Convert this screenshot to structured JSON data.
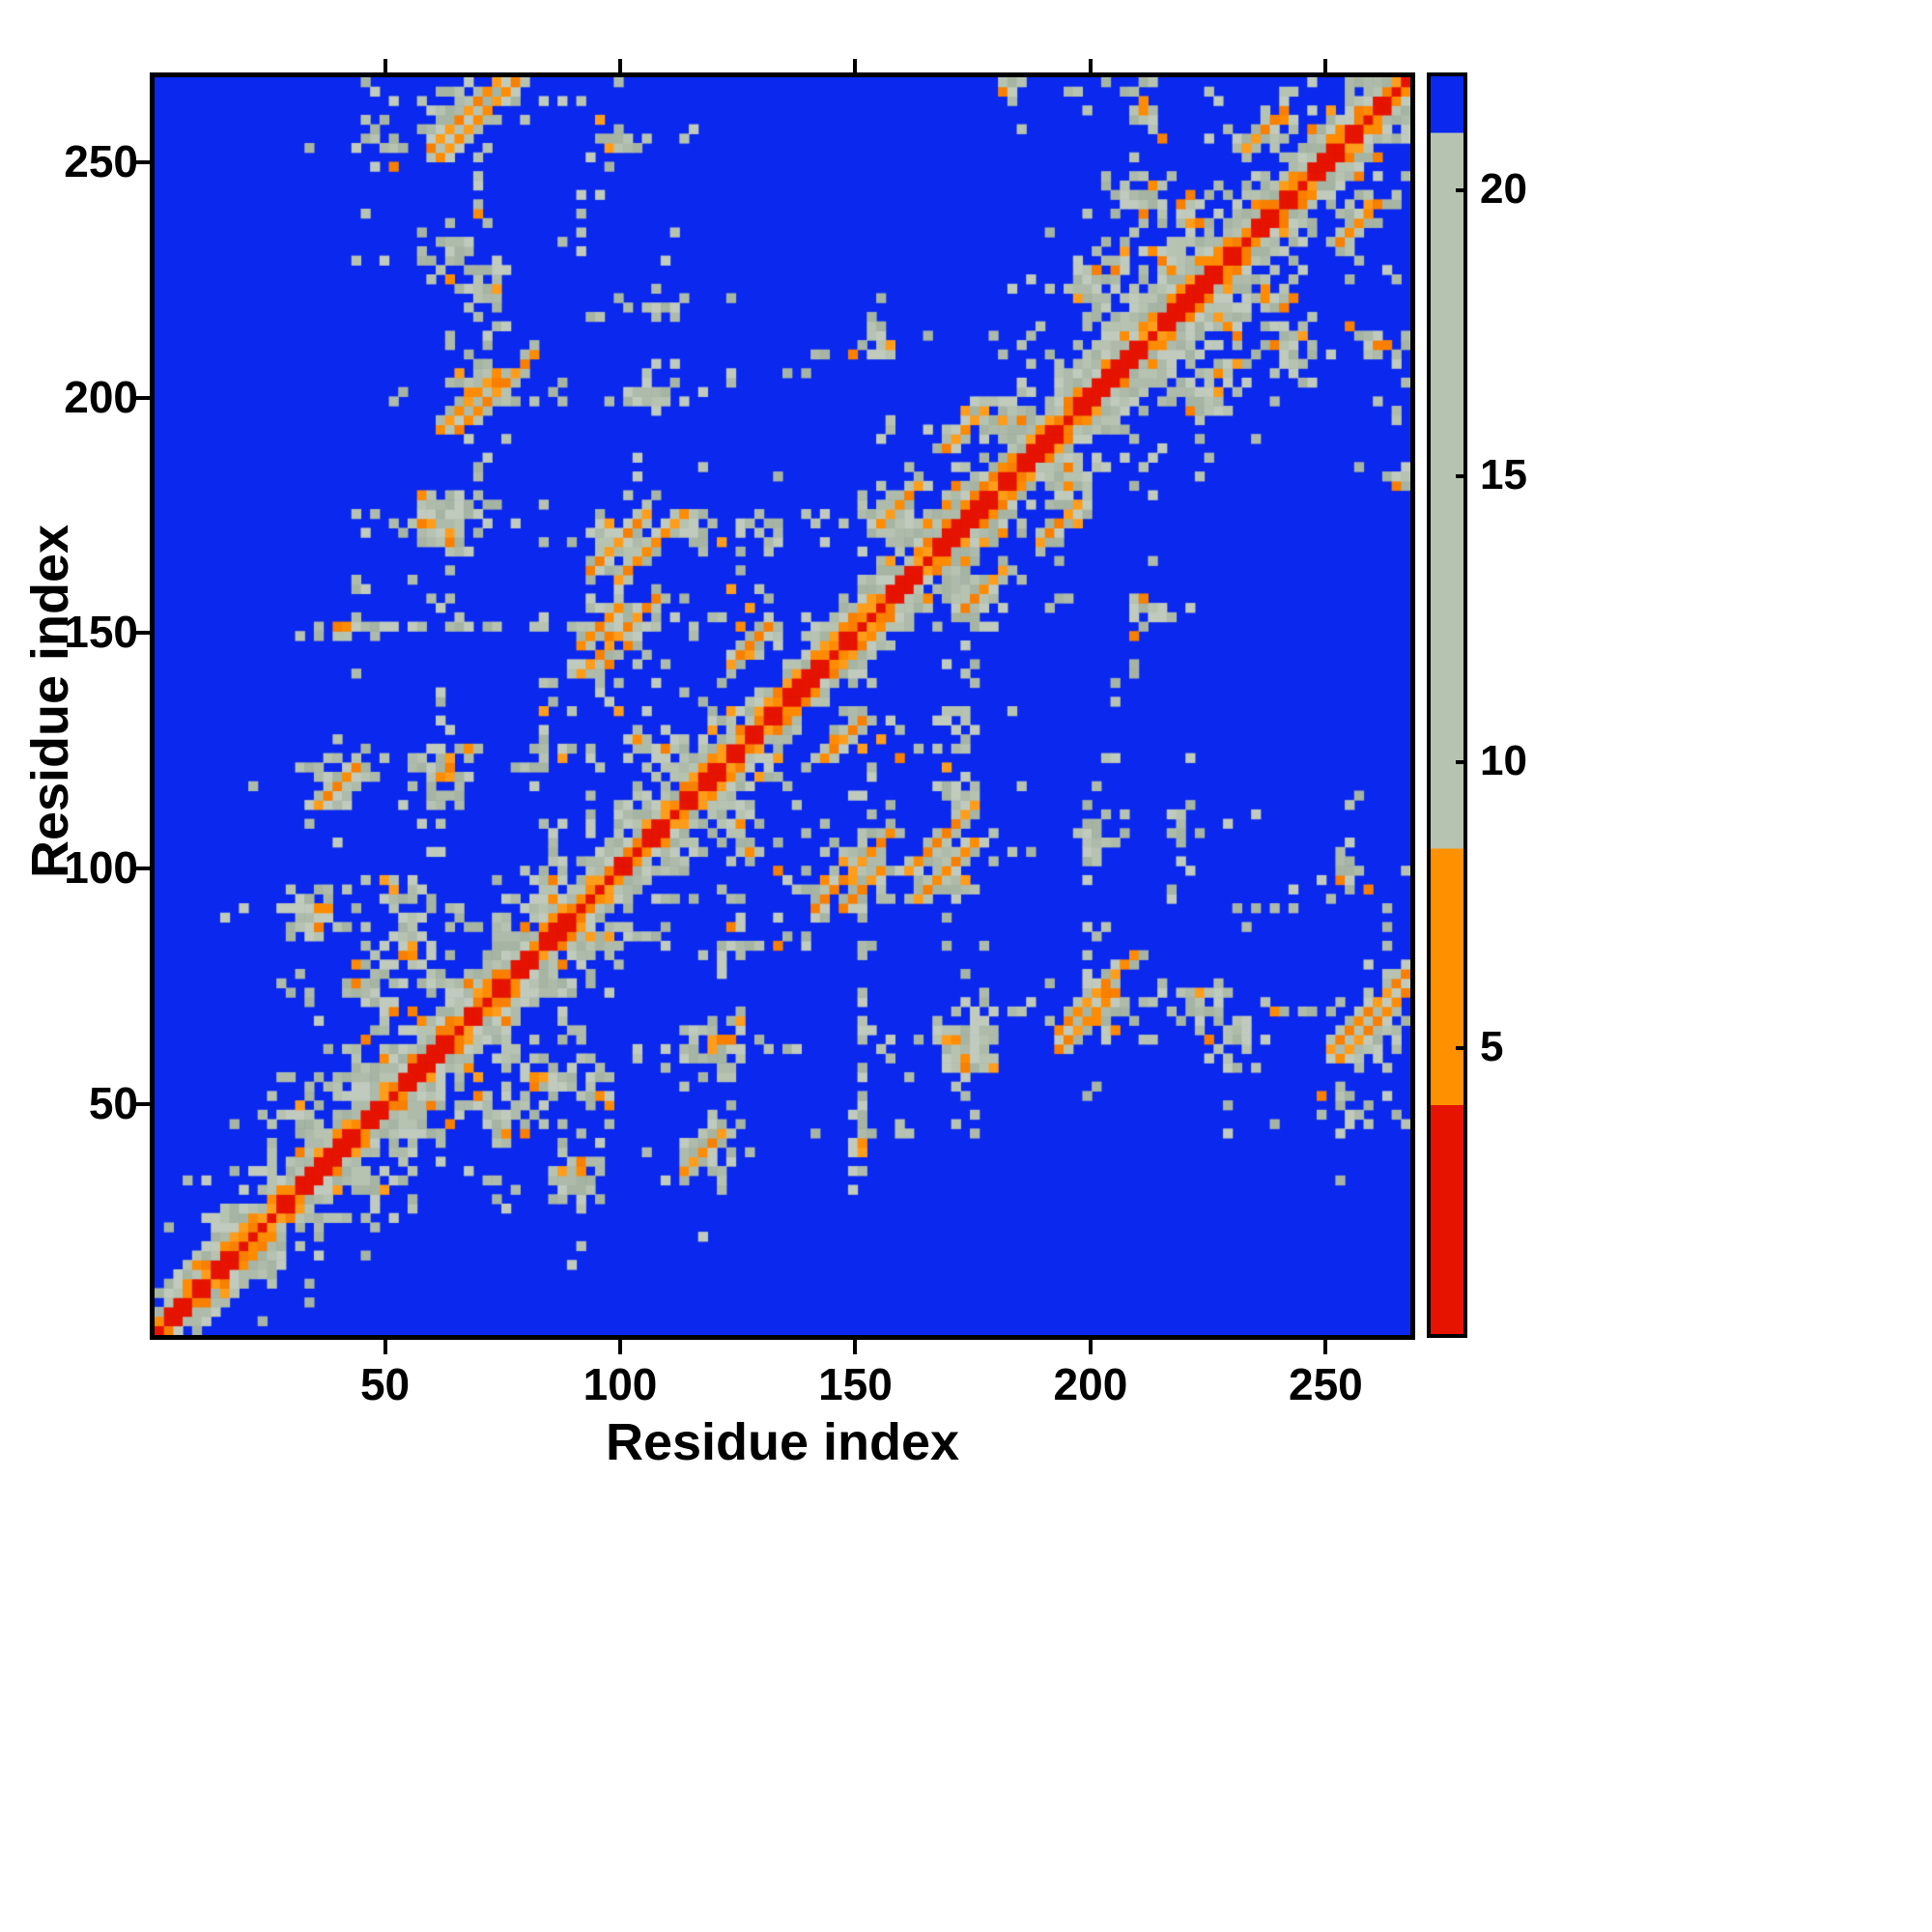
{
  "chart_data": {
    "type": "heatmap",
    "title": "",
    "xlabel": "Residue index",
    "ylabel": "Residue index",
    "x_range": [
      1,
      268
    ],
    "y_range": [
      1,
      268
    ],
    "x_ticks": [
      50,
      100,
      150,
      200,
      250
    ],
    "y_ticks": [
      50,
      100,
      150,
      200,
      250
    ],
    "grid": false,
    "legend_position": "right-colorbar",
    "colorbar": {
      "ticks": [
        5,
        10,
        15,
        20
      ],
      "vmin": 0,
      "vmax": 22,
      "stops": [
        {
          "upto": 0.182,
          "color": "#e61300"
        },
        {
          "upto": 0.386,
          "color": "#ff9100"
        },
        {
          "upto": 0.955,
          "color": "#b7c3b1"
        },
        {
          "upto": 1.0,
          "color": "#0a28ee"
        }
      ]
    },
    "colors": {
      "blue": "#0a28ee",
      "red": "#e61300",
      "gray_shades": [
        "#aebbaa",
        "#b7c3b1",
        "#c0cbbd",
        "#a6b4a3"
      ],
      "orange_shades": [
        "#ff8c00",
        "#ff9d1a",
        "#f97f00"
      ],
      "frame": "#000000"
    },
    "bins": 134,
    "residues_per_bin": 2,
    "diagonal": {
      "red_halfwidth": 1,
      "orange_halfwidth": 2,
      "gray_halfwidth": 5
    },
    "clusters": [
      {
        "x": 8,
        "y": 15,
        "r": 4
      },
      {
        "x": 16,
        "y": 24,
        "r": 5
      },
      {
        "x": 25,
        "y": 33,
        "r": 6
      },
      {
        "x": 34,
        "y": 44,
        "r": 7
      },
      {
        "x": 44,
        "y": 54,
        "r": 7
      },
      {
        "x": 54,
        "y": 63,
        "r": 7
      },
      {
        "x": 63,
        "y": 72,
        "r": 6
      },
      {
        "x": 72,
        "y": 82,
        "r": 7
      },
      {
        "x": 82,
        "y": 92,
        "r": 7
      },
      {
        "x": 92,
        "y": 101,
        "r": 6
      },
      {
        "x": 100,
        "y": 110,
        "r": 6
      },
      {
        "x": 110,
        "y": 120,
        "r": 6
      },
      {
        "x": 120,
        "y": 128,
        "r": 6
      },
      {
        "x": 143,
        "y": 150,
        "r": 4
      },
      {
        "x": 160,
        "y": 170,
        "r": 6
      },
      {
        "x": 170,
        "y": 178,
        "r": 6
      },
      {
        "x": 185,
        "y": 192,
        "r": 5,
        "d": 0.55
      },
      {
        "x": 196,
        "y": 205,
        "r": 6
      },
      {
        "x": 205,
        "y": 215,
        "r": 7
      },
      {
        "x": 215,
        "y": 224,
        "r": 7
      },
      {
        "x": 225,
        "y": 234,
        "r": 7
      },
      {
        "x": 234,
        "y": 243,
        "r": 6
      },
      {
        "x": 248,
        "y": 257,
        "r": 7
      },
      {
        "x": 257,
        "y": 264,
        "r": 6
      },
      {
        "x": 33,
        "y": 90,
        "r": 7
      },
      {
        "x": 38,
        "y": 118,
        "r": 6
      },
      {
        "x": 40,
        "y": 148,
        "r": 3
      },
      {
        "x": 55,
        "y": 85,
        "r": 7
      },
      {
        "x": 60,
        "y": 118,
        "r": 6,
        "d": 0.55
      },
      {
        "x": 60,
        "y": 170,
        "r": 8
      },
      {
        "x": 70,
        "y": 200,
        "r": 7
      },
      {
        "x": 70,
        "y": 222,
        "r": 6
      },
      {
        "x": 65,
        "y": 258,
        "r": 7
      },
      {
        "x": 48,
        "y": 252,
        "r": 4,
        "d": 0.5
      },
      {
        "x": 45,
        "y": 75,
        "r": 6
      },
      {
        "x": 85,
        "y": 125,
        "r": 7
      },
      {
        "x": 95,
        "y": 168,
        "r": 6
      },
      {
        "x": 100,
        "y": 150,
        "r": 6
      },
      {
        "x": 128,
        "y": 148,
        "r": 5
      },
      {
        "x": 105,
        "y": 125,
        "r": 6
      },
      {
        "x": 95,
        "y": 55,
        "r": 6
      },
      {
        "x": 118,
        "y": 60,
        "r": 7
      },
      {
        "x": 120,
        "y": 40,
        "r": 4,
        "d": 0.55
      },
      {
        "x": 150,
        "y": 42,
        "r": 4,
        "d": 0.5
      },
      {
        "x": 140,
        "y": 95,
        "r": 6
      },
      {
        "x": 152,
        "y": 122,
        "r": 5,
        "d": 0.55
      },
      {
        "x": 170,
        "y": 100,
        "r": 7
      },
      {
        "x": 175,
        "y": 65,
        "r": 7
      },
      {
        "x": 200,
        "y": 68,
        "r": 6
      },
      {
        "x": 230,
        "y": 65,
        "r": 7
      },
      {
        "x": 262,
        "y": 68,
        "r": 7
      },
      {
        "x": 255,
        "y": 45,
        "r": 5,
        "d": 0.5
      },
      {
        "x": 175,
        "y": 155,
        "r": 7
      },
      {
        "x": 178,
        "y": 195,
        "r": 7
      },
      {
        "x": 195,
        "y": 185,
        "r": 6
      },
      {
        "x": 200,
        "y": 105,
        "r": 6
      },
      {
        "x": 210,
        "y": 152,
        "r": 5
      },
      {
        "x": 225,
        "y": 200,
        "r": 7
      },
      {
        "x": 240,
        "y": 210,
        "r": 6
      },
      {
        "x": 215,
        "y": 228,
        "r": 8,
        "d": 0.6
      },
      {
        "x": 262,
        "y": 210,
        "r": 6
      },
      {
        "x": 265,
        "y": 185,
        "r": 4,
        "d": 0.5
      },
      {
        "x": 130,
        "y": 170,
        "r": 6
      },
      {
        "x": 115,
        "y": 170,
        "r": 5
      },
      {
        "x": 108,
        "y": 218,
        "r": 5,
        "d": 0.55
      },
      {
        "x": 96,
        "y": 255,
        "r": 5
      },
      {
        "x": 238,
        "y": 255,
        "r": 5
      },
      {
        "x": 190,
        "y": 225,
        "r": 4,
        "d": 0.45
      }
    ],
    "streaks": [
      {
        "x": 68,
        "y": 259,
        "len": 14
      },
      {
        "x": 72,
        "y": 201,
        "len": 14
      },
      {
        "x": 98,
        "y": 149,
        "len": 14
      },
      {
        "x": 126,
        "y": 147,
        "len": 9
      },
      {
        "x": 104,
        "y": 167,
        "len": 10
      },
      {
        "x": 169,
        "y": 99,
        "len": 13
      },
      {
        "x": 199,
        "y": 67,
        "len": 10
      },
      {
        "x": 261,
        "y": 67,
        "len": 14
      },
      {
        "x": 38,
        "y": 117,
        "len": 7
      },
      {
        "x": 172,
        "y": 192,
        "len": 8
      },
      {
        "x": 151,
        "y": 95,
        "len": 8
      },
      {
        "x": 146,
        "y": 151,
        "len": 6
      },
      {
        "x": 236,
        "y": 257,
        "len": 8
      },
      {
        "x": 176,
        "y": 158,
        "len": 8
      }
    ],
    "dotted_rows": [
      {
        "y": 150,
        "x1": 40,
        "x2": 92
      },
      {
        "y": 255,
        "x1": 94,
        "x2": 114
      },
      {
        "y": 218,
        "x1": 98,
        "x2": 112
      },
      {
        "y": 90,
        "x1": 228,
        "x2": 244
      }
    ],
    "dotted_cols": [
      {
        "x": 150,
        "y1": 34,
        "y2": 58
      },
      {
        "x": 120,
        "y1": 30,
        "y2": 46
      },
      {
        "x": 205,
        "y1": 118,
        "y2": 140
      }
    ]
  }
}
